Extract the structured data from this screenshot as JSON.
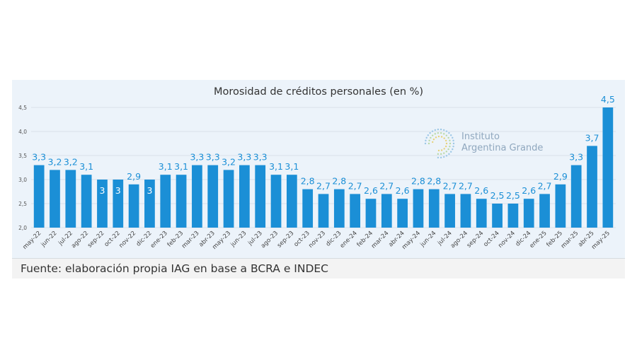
{
  "chart_data": {
    "type": "bar",
    "title": "Morosidad de créditos personales (en %)",
    "xlabel": "",
    "ylabel": "",
    "ylim": [
      2.0,
      4.5
    ],
    "yticks": [
      "2,0",
      "2,5",
      "3,0",
      "3,5",
      "4,0",
      "4,5"
    ],
    "grid": true,
    "bar_color": "#1b8fd6",
    "label_color": "#1b8fd6",
    "categories": [
      "may-22",
      "jun-22",
      "jul-22",
      "ago-22",
      "sep-22",
      "oct-22",
      "nov-22",
      "dic-22",
      "ene-23",
      "feb-23",
      "mar-23",
      "abr-23",
      "may-23",
      "jun-23",
      "jul-23",
      "ago-23",
      "sep-23",
      "oct-23",
      "nov-23",
      "dic-23",
      "ene-24",
      "feb-24",
      "mar-24",
      "abr-24",
      "may-24",
      "jun-24",
      "jul-24",
      "ago-24",
      "sep-24",
      "oct-24",
      "nov-24",
      "dic-24",
      "ene-25",
      "feb-25",
      "mar-25",
      "abr-25",
      "may-25"
    ],
    "values": [
      3.3,
      3.2,
      3.2,
      3.1,
      3.0,
      3.0,
      2.9,
      3.0,
      3.1,
      3.1,
      3.3,
      3.3,
      3.2,
      3.3,
      3.3,
      3.1,
      3.1,
      2.8,
      2.7,
      2.8,
      2.7,
      2.6,
      2.7,
      2.6,
      2.8,
      2.8,
      2.7,
      2.7,
      2.6,
      2.5,
      2.5,
      2.6,
      2.7,
      2.9,
      3.3,
      3.7,
      4.5
    ],
    "labels": [
      "3,3",
      "3,2",
      "3,2",
      "3,1",
      "3",
      "3",
      "2,9",
      "3",
      "3,1",
      "3,1",
      "3,3",
      "3,3",
      "3,2",
      "3,3",
      "3,3",
      "3,1",
      "3,1",
      "2,8",
      "2,7",
      "2,8",
      "2,7",
      "2,6",
      "2,7",
      "2,6",
      "2,8",
      "2,8",
      "2,7",
      "2,7",
      "2,6",
      "2,5",
      "2,5",
      "2,6",
      "2,7",
      "2,9",
      "3,3",
      "3,7",
      "4,5"
    ],
    "labels_inside": [
      false,
      false,
      false,
      false,
      true,
      true,
      false,
      true,
      false,
      false,
      false,
      false,
      false,
      false,
      false,
      false,
      false,
      false,
      false,
      false,
      false,
      false,
      false,
      false,
      false,
      false,
      false,
      false,
      false,
      false,
      false,
      false,
      false,
      false,
      false,
      false,
      false
    ]
  },
  "logo": {
    "line1": "Instituto",
    "line2": "Argentina Grande",
    "icon": "dotted-circle-logo-icon"
  },
  "source": "Fuente: elaboración propia IAG en base a BCRA e INDEC"
}
